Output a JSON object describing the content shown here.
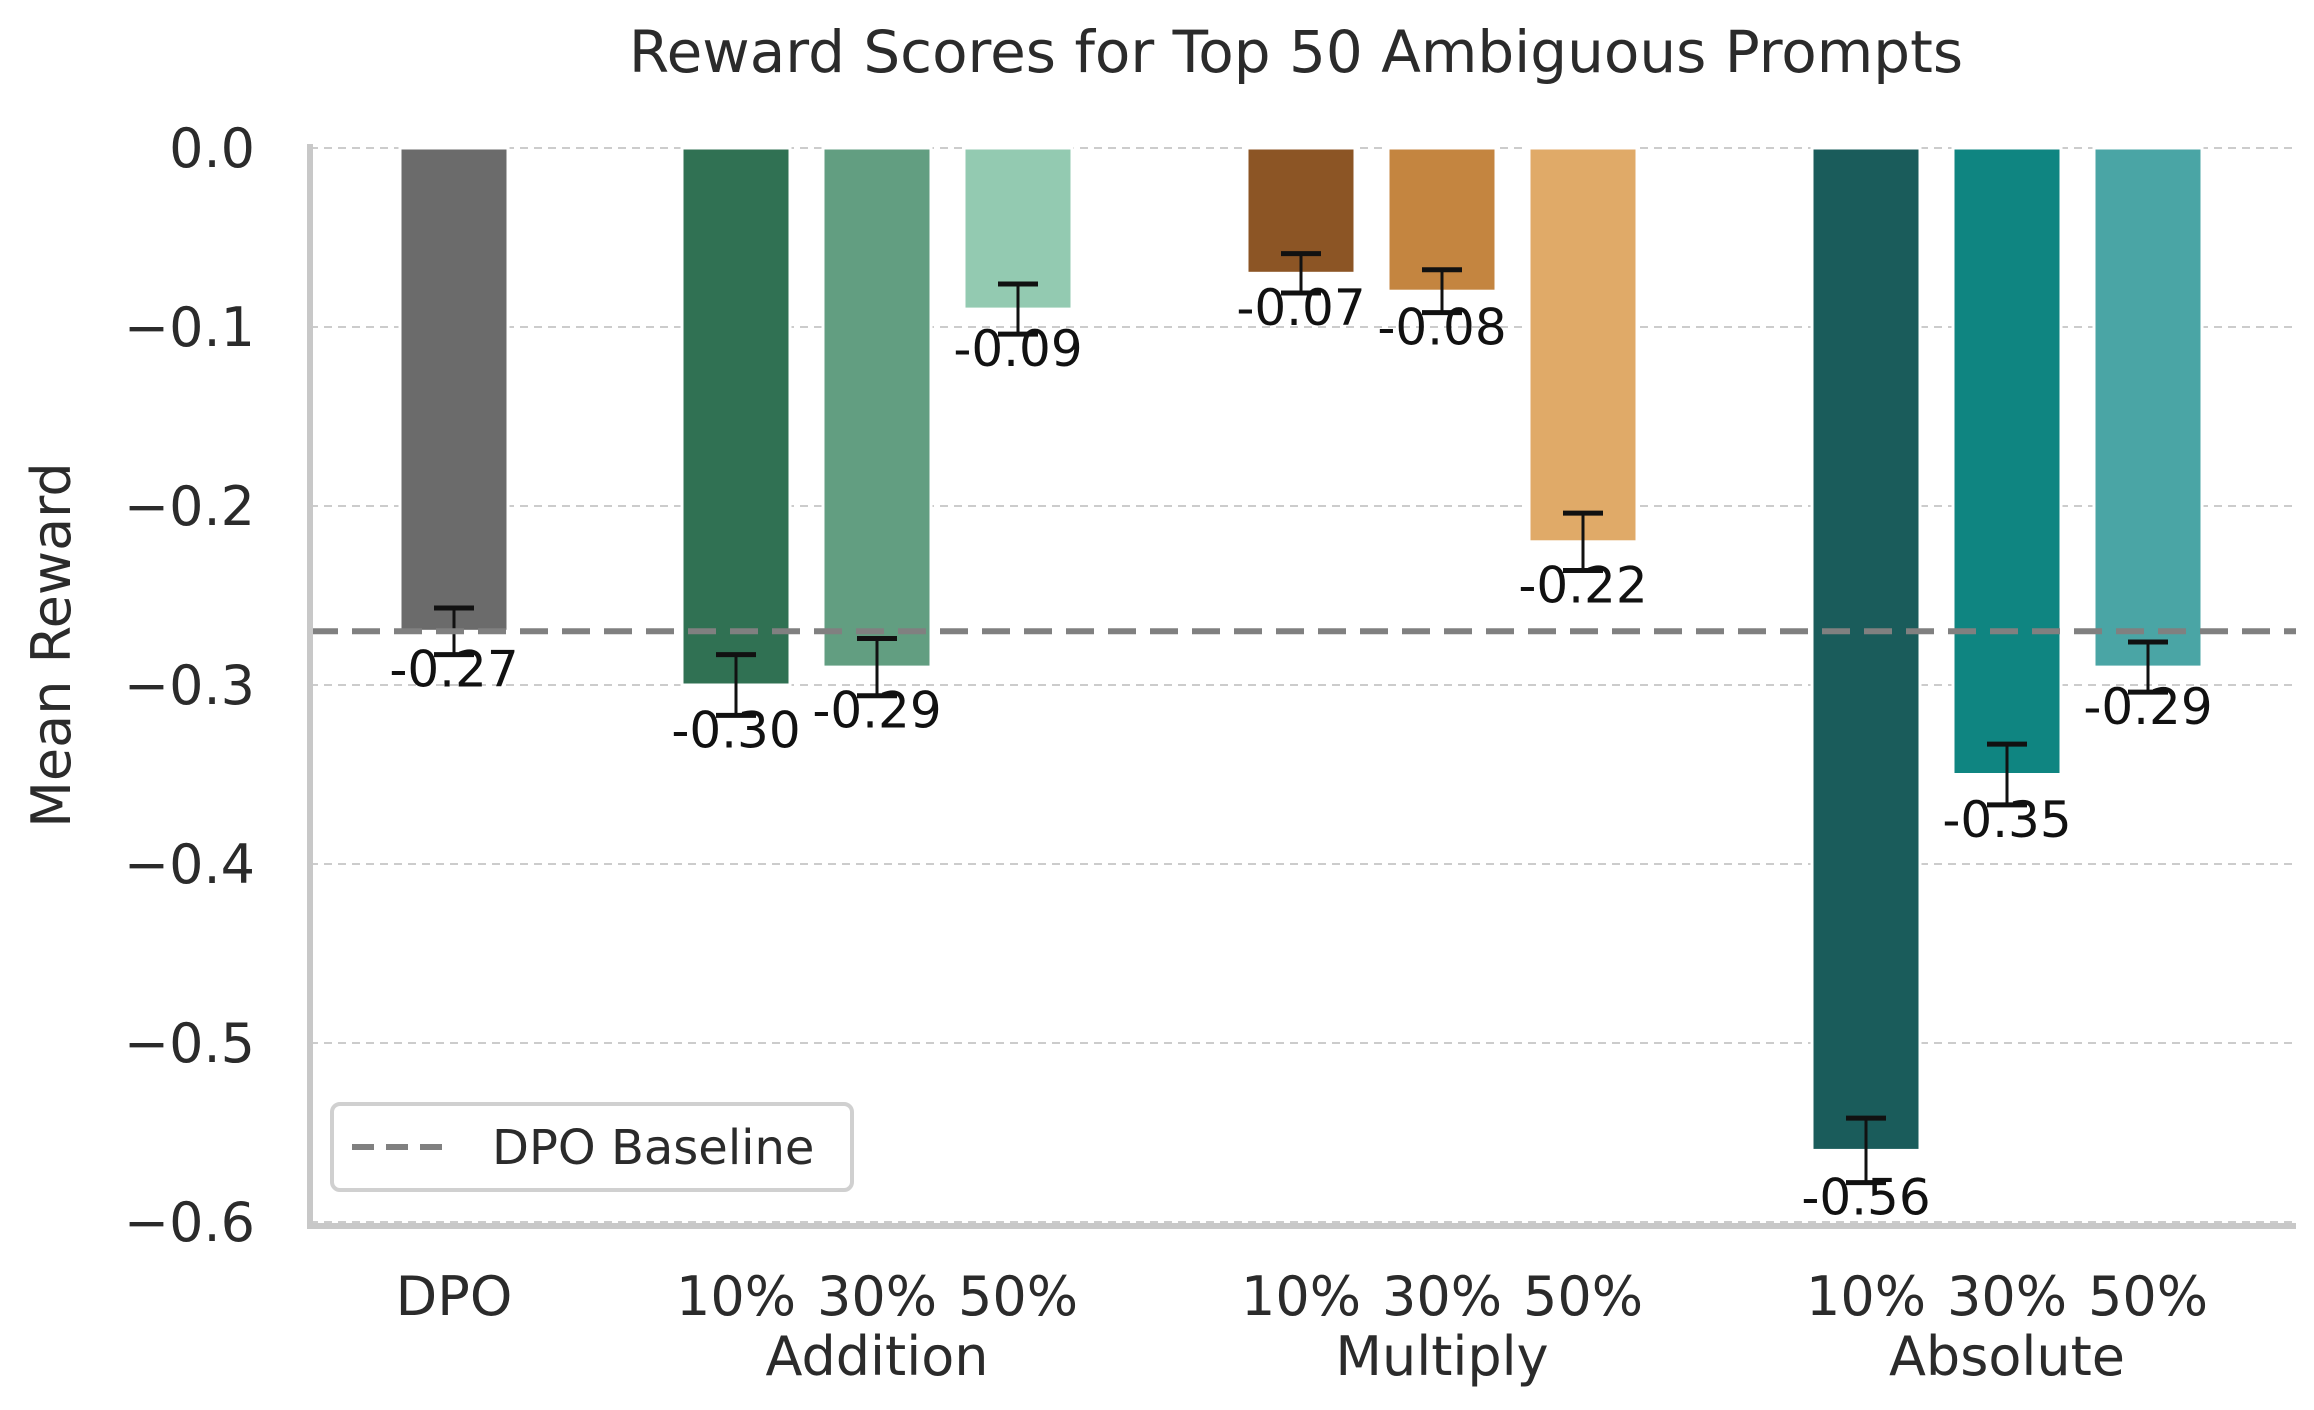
{
  "chart_data": {
    "type": "bar",
    "title": "Reward Scores for Top 50 Ambiguous Prompts",
    "xlabel": "",
    "ylabel": "Mean Reward",
    "ylim": [
      -0.6,
      0.0
    ],
    "yticks": [
      "0.0",
      "−0.1",
      "−0.2",
      "−0.3",
      "−0.4",
      "−0.5",
      "−0.6"
    ],
    "ytick_values": [
      0.0,
      -0.1,
      -0.2,
      -0.3,
      -0.4,
      -0.5,
      -0.6
    ],
    "grid": true,
    "groups": [
      {
        "name": "",
        "bars": [
          {
            "tick": "DPO",
            "value": -0.27,
            "err": 0.013,
            "label": "-0.27",
            "color": "#6b6b6b"
          }
        ]
      },
      {
        "name": "Addition",
        "bars": [
          {
            "tick": "10%",
            "value": -0.3,
            "err": 0.017,
            "label": "-0.30",
            "color": "#307153"
          },
          {
            "tick": "30%",
            "value": -0.29,
            "err": 0.016,
            "label": "-0.29",
            "color": "#629e81"
          },
          {
            "tick": "50%",
            "value": -0.09,
            "err": 0.014,
            "label": "-0.09",
            "color": "#93cab1"
          }
        ]
      },
      {
        "name": "Multiply",
        "bars": [
          {
            "tick": "10%",
            "value": -0.07,
            "err": 0.011,
            "label": "-0.07",
            "color": "#8c5525"
          },
          {
            "tick": "30%",
            "value": -0.08,
            "err": 0.012,
            "label": "-0.08",
            "color": "#c48540"
          },
          {
            "tick": "50%",
            "value": -0.22,
            "err": 0.016,
            "label": "-0.22",
            "color": "#e0aa68"
          }
        ]
      },
      {
        "name": "Absolute",
        "bars": [
          {
            "tick": "10%",
            "value": -0.56,
            "err": 0.018,
            "label": "-0.56",
            "color": "#1a5c5b"
          },
          {
            "tick": "30%",
            "value": -0.35,
            "err": 0.017,
            "label": "-0.35",
            "color": "#0f8581"
          },
          {
            "tick": "50%",
            "value": -0.29,
            "err": 0.014,
            "label": "-0.29",
            "color": "#4aa5a5"
          }
        ]
      }
    ],
    "baseline": {
      "value": -0.27,
      "label": "DPO Baseline",
      "color": "#808080"
    },
    "legend": {
      "position": "bottom-left",
      "entries": [
        "DPO Baseline"
      ]
    }
  }
}
